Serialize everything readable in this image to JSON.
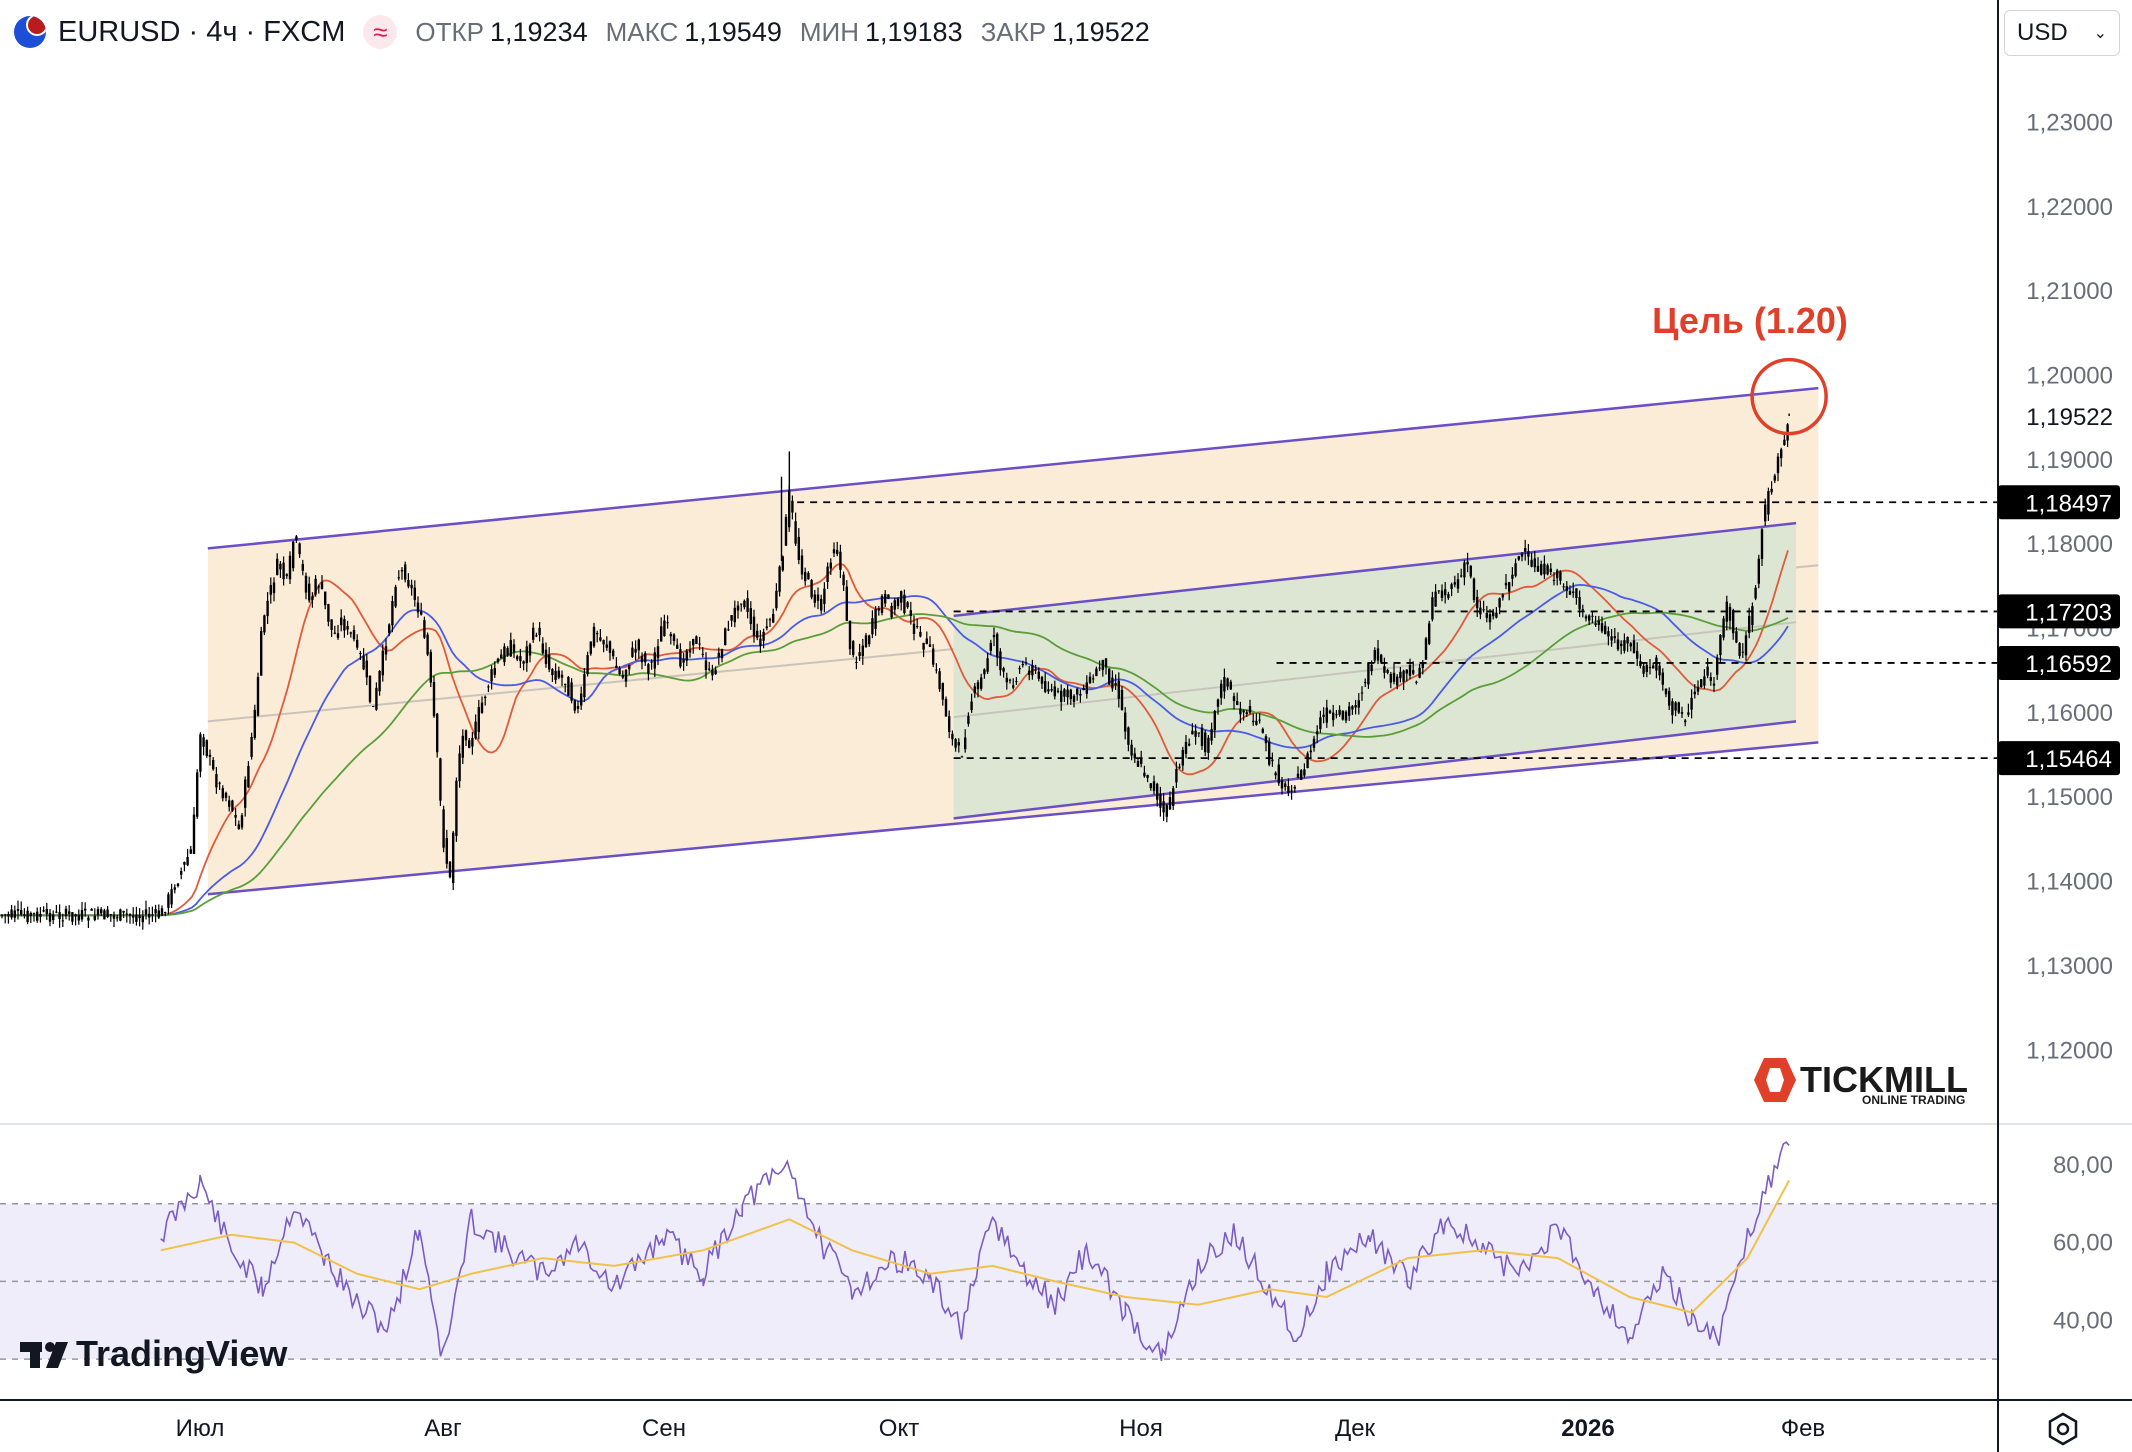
{
  "header": {
    "symbol": "EURUSD · 4ч · FXCM",
    "indicator_icon": "≈",
    "open_label": "ОТКР",
    "open_value": "1,19234",
    "high_label": "МАКС",
    "high_value": "1,19549",
    "low_label": "МИН",
    "low_value": "1,19183",
    "close_label": "ЗАКР",
    "close_value": "1,19522"
  },
  "currency_select": {
    "value": "USD"
  },
  "annotation": {
    "target_label": "Цель (1.20)",
    "color": "#e0402a"
  },
  "logos": {
    "broker_name": "TICKMILL",
    "broker_sub": "ONLINE TRADING",
    "platform": "TradingView"
  },
  "icons": {
    "settings": "gear-icon",
    "currency_chevron": "chevron-down-icon"
  },
  "chart_data": [
    {
      "type": "line",
      "subtype": "candlestick",
      "title": "EURUSD · 4ч · FXCM",
      "x_tick_labels": [
        "Июл",
        "Авг",
        "Сен",
        "Окт",
        "Ноя",
        "Дек",
        "2026",
        "Фев"
      ],
      "y_tick_labels": [
        "1,23000",
        "1,22000",
        "1,21000",
        "1,20000",
        "1,19000",
        "1,18000",
        "1,17000",
        "1,16000",
        "1,15000",
        "1,14000",
        "1,13000",
        "1,12000"
      ],
      "ylim": [
        1.1115,
        1.2374
      ],
      "price_labels": [
        {
          "value": 1.19522,
          "text": "1,19522",
          "style": "plain"
        },
        {
          "value": 1.18497,
          "text": "1,18497",
          "style": "black"
        },
        {
          "value": 1.17203,
          "text": "1,17203",
          "style": "black"
        },
        {
          "value": 1.16592,
          "text": "1,16592",
          "style": "black"
        },
        {
          "value": 1.15464,
          "text": "1,15464",
          "style": "black"
        }
      ],
      "ohlc_last": {
        "open": 1.19234,
        "high": 1.19549,
        "low": 1.19183,
        "close": 1.19522
      },
      "price_path": [
        {
          "x": "Июн 26",
          "y": 1.136
        },
        {
          "x": "Июн 28",
          "y": 1.14
        },
        {
          "x": "Июн 30",
          "y": 1.144
        },
        {
          "x": "Июл 01",
          "y": 1.158
        },
        {
          "x": "Июл 02",
          "y": 1.155
        },
        {
          "x": "Июл 03",
          "y": 1.152
        },
        {
          "x": "Июл 05",
          "y": 1.149
        },
        {
          "x": "Июл 06",
          "y": 1.146
        },
        {
          "x": "Июл 08",
          "y": 1.16
        },
        {
          "x": "Июл 09",
          "y": 1.171
        },
        {
          "x": "Июл 11",
          "y": 1.178
        },
        {
          "x": "Июл 12",
          "y": 1.175
        },
        {
          "x": "Июл 13",
          "y": 1.181
        },
        {
          "x": "Июл 15",
          "y": 1.173
        },
        {
          "x": "Июл 16",
          "y": 1.176
        },
        {
          "x": "Июл 18",
          "y": 1.169
        },
        {
          "x": "Июл 19",
          "y": 1.171
        },
        {
          "x": "Июл 21",
          "y": 1.168
        },
        {
          "x": "Июл 22",
          "y": 1.165
        },
        {
          "x": "Июл 23",
          "y": 1.16
        },
        {
          "x": "Июл 24",
          "y": 1.165
        },
        {
          "x": "Июл 25",
          "y": 1.17
        },
        {
          "x": "Июл 26",
          "y": 1.176
        },
        {
          "x": "Июл 27",
          "y": 1.177
        },
        {
          "x": "Июл 29",
          "y": 1.172
        },
        {
          "x": "Июл 30",
          "y": 1.167
        },
        {
          "x": "Июл 31",
          "y": 1.158
        },
        {
          "x": "Авг 01",
          "y": 1.145
        },
        {
          "x": "Авг 02",
          "y": 1.14
        },
        {
          "x": "Авг 03",
          "y": 1.154
        },
        {
          "x": "Авг 04",
          "y": 1.158
        },
        {
          "x": "Авг 05",
          "y": 1.156
        },
        {
          "x": "Авг 06",
          "y": 1.16
        },
        {
          "x": "Авг 08",
          "y": 1.165
        },
        {
          "x": "Авг 10",
          "y": 1.168
        },
        {
          "x": "Авг 12",
          "y": 1.166
        },
        {
          "x": "Авг 14",
          "y": 1.17
        },
        {
          "x": "Авг 16",
          "y": 1.165
        },
        {
          "x": "Авг 18",
          "y": 1.164
        },
        {
          "x": "Авг 20",
          "y": 1.16
        },
        {
          "x": "Авг 22",
          "y": 1.17
        },
        {
          "x": "Авг 24",
          "y": 1.168
        },
        {
          "x": "Авг 26",
          "y": 1.164
        },
        {
          "x": "Авг 28",
          "y": 1.168
        },
        {
          "x": "Авг 30",
          "y": 1.165
        },
        {
          "x": "Сен 01",
          "y": 1.171
        },
        {
          "x": "Сен 03",
          "y": 1.166
        },
        {
          "x": "Сен 05",
          "y": 1.169
        },
        {
          "x": "Сен 07",
          "y": 1.164
        },
        {
          "x": "Сен 09",
          "y": 1.17
        },
        {
          "x": "Сен 11",
          "y": 1.174
        },
        {
          "x": "Сен 13",
          "y": 1.168
        },
        {
          "x": "Сен 15",
          "y": 1.172
        },
        {
          "x": "Сен 16",
          "y": 1.178
        },
        {
          "x": "Сен 17",
          "y": 1.186
        },
        {
          "x": "Сен 18",
          "y": 1.179
        },
        {
          "x": "Сен 19",
          "y": 1.176
        },
        {
          "x": "Сен 21",
          "y": 1.172
        },
        {
          "x": "Сен 22",
          "y": 1.178
        },
        {
          "x": "Сен 23",
          "y": 1.18
        },
        {
          "x": "Сен 24",
          "y": 1.174
        },
        {
          "x": "Сен 25",
          "y": 1.166
        },
        {
          "x": "Сен 27",
          "y": 1.169
        },
        {
          "x": "Сен 29",
          "y": 1.174
        },
        {
          "x": "Сен 30",
          "y": 1.172
        },
        {
          "x": "Окт 01",
          "y": 1.174
        },
        {
          "x": "Окт 02",
          "y": 1.172
        },
        {
          "x": "Окт 03",
          "y": 1.17
        },
        {
          "x": "Окт 05",
          "y": 1.167
        },
        {
          "x": "Окт 06",
          "y": 1.164
        },
        {
          "x": "Окт 07",
          "y": 1.16
        },
        {
          "x": "Окт 08",
          "y": 1.156
        },
        {
          "x": "Окт 09",
          "y": 1.155
        },
        {
          "x": "Окт 10",
          "y": 1.161
        },
        {
          "x": "Окт 12",
          "y": 1.165
        },
        {
          "x": "Окт 13",
          "y": 1.17
        },
        {
          "x": "Окт 14",
          "y": 1.165
        },
        {
          "x": "Окт 15",
          "y": 1.163
        },
        {
          "x": "Окт 17",
          "y": 1.166
        },
        {
          "x": "Окт 19",
          "y": 1.164
        },
        {
          "x": "Окт 21",
          "y": 1.162
        },
        {
          "x": "Окт 23",
          "y": 1.162
        },
        {
          "x": "Окт 25",
          "y": 1.163
        },
        {
          "x": "Окт 27",
          "y": 1.166
        },
        {
          "x": "Окт 28",
          "y": 1.164
        },
        {
          "x": "Окт 29",
          "y": 1.163
        },
        {
          "x": "Окт 30",
          "y": 1.158
        },
        {
          "x": "Окт 31",
          "y": 1.155
        },
        {
          "x": "Ноя 02",
          "y": 1.152
        },
        {
          "x": "Ноя 03",
          "y": 1.151
        },
        {
          "x": "Ноя 04",
          "y": 1.148
        },
        {
          "x": "Ноя 05",
          "y": 1.149
        },
        {
          "x": "Ноя 06",
          "y": 1.153
        },
        {
          "x": "Ноя 07",
          "y": 1.156
        },
        {
          "x": "Ноя 09",
          "y": 1.158
        },
        {
          "x": "Ноя 10",
          "y": 1.156
        },
        {
          "x": "Ноя 11",
          "y": 1.159
        },
        {
          "x": "Ноя 12",
          "y": 1.163
        },
        {
          "x": "Ноя 13",
          "y": 1.164
        },
        {
          "x": "Ноя 14",
          "y": 1.161
        },
        {
          "x": "Ноя 16",
          "y": 1.16
        },
        {
          "x": "Ноя 17",
          "y": 1.159
        },
        {
          "x": "Ноя 18",
          "y": 1.158
        },
        {
          "x": "Ноя 19",
          "y": 1.154
        },
        {
          "x": "Ноя 20",
          "y": 1.153
        },
        {
          "x": "Ноя 21",
          "y": 1.151
        },
        {
          "x": "Ноя 23",
          "y": 1.152
        },
        {
          "x": "Ноя 24",
          "y": 1.154
        },
        {
          "x": "Ноя 25",
          "y": 1.156
        },
        {
          "x": "Ноя 26",
          "y": 1.159
        },
        {
          "x": "Ноя 27",
          "y": 1.16
        },
        {
          "x": "Ноя 28",
          "y": 1.159
        },
        {
          "x": "Дек 01",
          "y": 1.161
        },
        {
          "x": "Дек 02",
          "y": 1.163
        },
        {
          "x": "Дек 03",
          "y": 1.166
        },
        {
          "x": "Дек 04",
          "y": 1.167
        },
        {
          "x": "Дек 05",
          "y": 1.164
        },
        {
          "x": "Дек 07",
          "y": 1.164
        },
        {
          "x": "Дек 08",
          "y": 1.165
        },
        {
          "x": "Дек 09",
          "y": 1.164
        },
        {
          "x": "Дек 10",
          "y": 1.166
        },
        {
          "x": "Дек 11",
          "y": 1.172
        },
        {
          "x": "Дек 12",
          "y": 1.175
        },
        {
          "x": "Дек 13",
          "y": 1.174
        },
        {
          "x": "Дек 15",
          "y": 1.176
        },
        {
          "x": "Дек 16",
          "y": 1.178
        },
        {
          "x": "Дек 17",
          "y": 1.173
        },
        {
          "x": "Дек 18",
          "y": 1.172
        },
        {
          "x": "Дек 19",
          "y": 1.171
        },
        {
          "x": "Дек 21",
          "y": 1.175
        },
        {
          "x": "Дек 22",
          "y": 1.177
        },
        {
          "x": "Дек 23",
          "y": 1.179
        },
        {
          "x": "Дек 24",
          "y": 1.178
        },
        {
          "x": "Дек 26",
          "y": 1.177
        },
        {
          "x": "Дек 28",
          "y": 1.176
        },
        {
          "x": "Дек 30",
          "y": 1.174
        },
        {
          "x": "Дек 31",
          "y": 1.172
        },
        {
          "x": "Янв 02",
          "y": 1.171
        },
        {
          "x": "Янв 04",
          "y": 1.169
        },
        {
          "x": "Янв 06",
          "y": 1.168
        },
        {
          "x": "Янв 07",
          "y": 1.169
        },
        {
          "x": "Янв 08",
          "y": 1.166
        },
        {
          "x": "Янв 09",
          "y": 1.165
        },
        {
          "x": "Янв 11",
          "y": 1.166
        },
        {
          "x": "Янв 12",
          "y": 1.163
        },
        {
          "x": "Янв 13",
          "y": 1.16
        },
        {
          "x": "Янв 14",
          "y": 1.161
        },
        {
          "x": "Янв 15",
          "y": 1.159
        },
        {
          "x": "Янв 16",
          "y": 1.162
        },
        {
          "x": "Янв 18",
          "y": 1.165
        },
        {
          "x": "Янв 19",
          "y": 1.163
        },
        {
          "x": "Янв 20",
          "y": 1.168
        },
        {
          "x": "Янв 21",
          "y": 1.173
        },
        {
          "x": "Янв 22",
          "y": 1.17
        },
        {
          "x": "Янв 23",
          "y": 1.166
        },
        {
          "x": "Янв 24",
          "y": 1.17
        },
        {
          "x": "Янв 25",
          "y": 1.174
        },
        {
          "x": "Янв 26",
          "y": 1.182
        },
        {
          "x": "Янв 27",
          "y": 1.186
        },
        {
          "x": "Янв 28",
          "y": 1.188
        },
        {
          "x": "Янв 29",
          "y": 1.192
        },
        {
          "x": "Янв 30",
          "y": 1.1952
        }
      ],
      "moving_averages": [
        {
          "color": "#e05a3b",
          "style": "short"
        },
        {
          "color": "#4a5be8",
          "style": "medium"
        },
        {
          "color": "#5a9e3a",
          "style": "long"
        }
      ],
      "channels": [
        {
          "name": "outer",
          "fill": "#faecd7",
          "start": {
            "x": "Июл 02",
            "upper": 1.1795,
            "lower": 1.1385
          },
          "end": {
            "x": "Фев 03",
            "upper": 1.1985,
            "lower": 1.1565
          }
        },
        {
          "name": "inner",
          "fill": "#dde6d2",
          "start": {
            "x": "Окт 08",
            "upper": 1.1715,
            "lower": 1.1475
          },
          "end": {
            "x": "Янв 31",
            "upper": 1.1825,
            "lower": 1.159
          }
        }
      ],
      "horizontal_levels": [
        1.18497,
        1.17203,
        1.16592,
        1.15464
      ],
      "target_circle": {
        "x": "Янв 30",
        "y": 1.1975
      }
    },
    {
      "type": "line",
      "subtype": "rsi",
      "y_tick_labels": [
        "80,00",
        "60,00",
        "40,00"
      ],
      "ylim": [
        20,
        90
      ],
      "bands": {
        "upper": 70,
        "middle": 50,
        "lower": 30
      },
      "series": [
        {
          "color": "#7b5cc4",
          "x": [
            "Июн 26",
            "Июл 01",
            "Июл 05",
            "Июл 09",
            "Июл 13",
            "Июл 17",
            "Июл 21",
            "Июл 25",
            "Июл 29",
            "Авг 01",
            "Авг 05",
            "Авг 10",
            "Авг 15",
            "Авг 20",
            "Авг 25",
            "Сен 01",
            "Сен 06",
            "Сен 11",
            "Сен 17",
            "Сен 21",
            "Сен 25",
            "Окт 01",
            "Окт 05",
            "Окт 09",
            "Окт 13",
            "Окт 17",
            "Окт 21",
            "Окт 25",
            "Окт 30",
            "Ноя 04",
            "Ноя 09",
            "Ноя 14",
            "Ноя 19",
            "Ноя 23",
            "Ноя 27",
            "Дек 03",
            "Дек 08",
            "Дек 13",
            "Дек 18",
            "Дек 23",
            "Дек 28",
            "Янв 02",
            "Янв 07",
            "Янв 12",
            "Янв 16",
            "Янв 20",
            "Янв 24",
            "Янв 27",
            "Янв 30"
          ],
          "values": [
            62,
            76,
            58,
            48,
            70,
            56,
            44,
            38,
            64,
            30,
            66,
            58,
            52,
            60,
            48,
            62,
            52,
            70,
            80,
            60,
            48,
            56,
            50,
            38,
            66,
            52,
            44,
            58,
            42,
            30,
            54,
            62,
            48,
            36,
            52,
            62,
            50,
            66,
            58,
            52,
            64,
            48,
            36,
            52,
            40,
            36,
            62,
            76,
            85
          ]
        },
        {
          "color": "#f0c24a",
          "x": [
            "Июн 26",
            "Июл 05",
            "Июл 13",
            "Июл 21",
            "Июл 29",
            "Авг 05",
            "Авг 15",
            "Авг 25",
            "Сен 06",
            "Сен 17",
            "Сен 25",
            "Окт 05",
            "Окт 13",
            "Окт 21",
            "Окт 30",
            "Ноя 09",
            "Ноя 19",
            "Ноя 27",
            "Дек 08",
            "Дек 18",
            "Дек 28",
            "Янв 07",
            "Янв 16",
            "Янв 24",
            "Янв 30"
          ],
          "values": [
            58,
            62,
            60,
            52,
            48,
            52,
            56,
            54,
            58,
            66,
            58,
            52,
            54,
            50,
            46,
            44,
            48,
            46,
            56,
            58,
            56,
            46,
            42,
            56,
            76
          ]
        }
      ]
    }
  ]
}
